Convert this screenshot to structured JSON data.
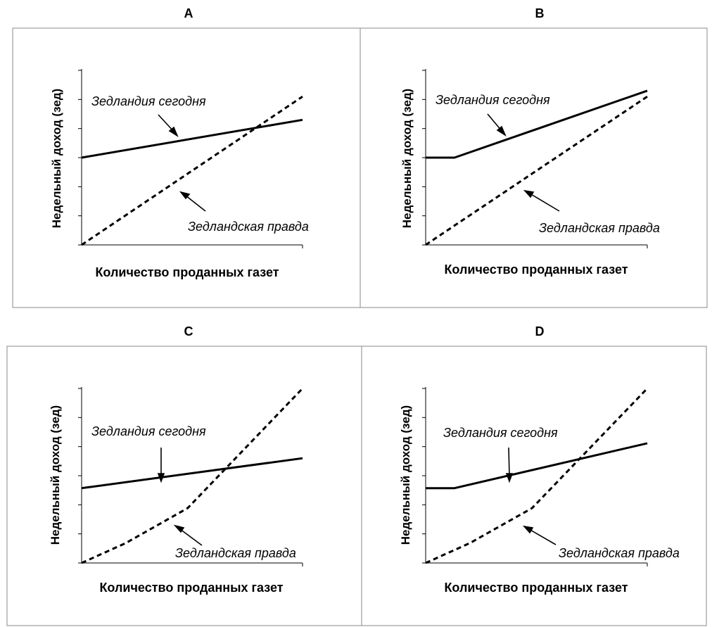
{
  "chart_data": [
    {
      "type": "line",
      "title": "A",
      "xlabel": "Количество проданных газет",
      "ylabel": "Недельный доход (зед)",
      "xlim": [
        0,
        10
      ],
      "ylim": [
        0,
        6
      ],
      "grid": false,
      "series": [
        {
          "name": "Зедландия сегодня",
          "style": "solid",
          "x": [
            0,
            10
          ],
          "y": [
            3.0,
            4.3
          ]
        },
        {
          "name": "Зедландская правда",
          "style": "dashed",
          "x": [
            0,
            10
          ],
          "y": [
            0,
            5.1
          ]
        }
      ],
      "annotations": [
        "Зедландия сегодня",
        "Зедландская правда"
      ]
    },
    {
      "type": "line",
      "title": "B",
      "xlabel": "Количество проданных газет",
      "ylabel": "Недельный доход (зед)",
      "xlim": [
        0,
        10
      ],
      "ylim": [
        0,
        6
      ],
      "grid": false,
      "series": [
        {
          "name": "Зедландия сегодня",
          "style": "solid",
          "x": [
            0,
            1.3,
            10
          ],
          "y": [
            3.0,
            3.0,
            5.3
          ]
        },
        {
          "name": "Зедландская правда",
          "style": "dashed",
          "x": [
            0,
            10
          ],
          "y": [
            0,
            5.1
          ]
        }
      ],
      "annotations": [
        "Зедландия сегодня",
        "Зедландская правда"
      ]
    },
    {
      "type": "line",
      "title": "C",
      "xlabel": "Количество проданных газет",
      "ylabel": "Недельный доход (зед)",
      "xlim": [
        0,
        10
      ],
      "ylim": [
        0,
        7
      ],
      "grid": false,
      "series": [
        {
          "name": "Зедландия сегодня",
          "style": "solid",
          "x": [
            0,
            10
          ],
          "y": [
            3.0,
            4.2
          ]
        },
        {
          "name": "Зедландская правда",
          "style": "dashed",
          "x": [
            0,
            2,
            4.8,
            10
          ],
          "y": [
            0,
            0.8,
            2.2,
            7.0
          ]
        }
      ],
      "annotations": [
        "Зедландия сегодня",
        "Зедландская правда"
      ]
    },
    {
      "type": "line",
      "title": "D",
      "xlabel": "Количество проданных газет",
      "ylabel": "Недельный доход (зед)",
      "xlim": [
        0,
        10
      ],
      "ylim": [
        0,
        7
      ],
      "grid": false,
      "series": [
        {
          "name": "Зедландия сегодня",
          "style": "solid",
          "x": [
            0,
            1.3,
            10
          ],
          "y": [
            3.0,
            3.0,
            4.8
          ]
        },
        {
          "name": "Зедландская правда",
          "style": "dashed",
          "x": [
            0,
            2,
            4.8,
            10
          ],
          "y": [
            0,
            0.8,
            2.2,
            7.0
          ]
        }
      ],
      "annotations": [
        "Зедландия сегодня",
        "Зедландская правда"
      ]
    }
  ]
}
